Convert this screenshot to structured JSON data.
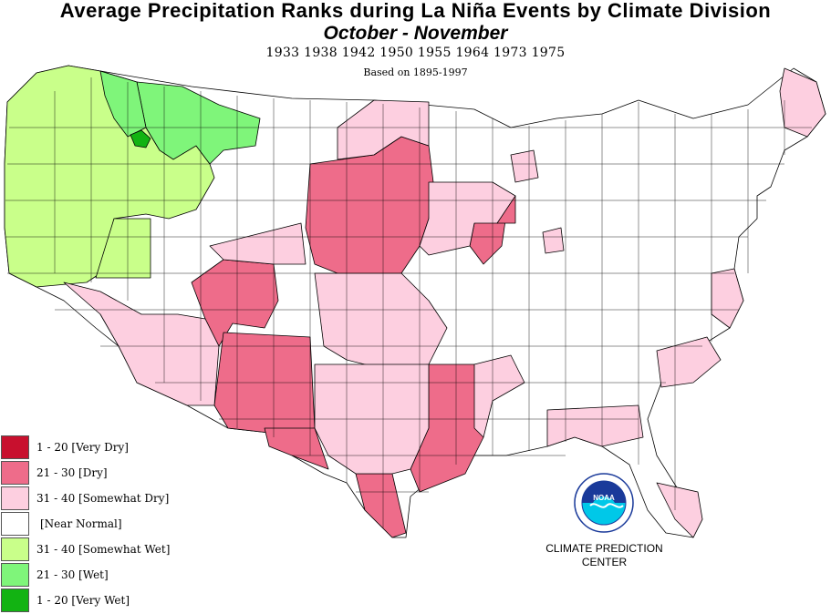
{
  "header": {
    "title": "Average Precipitation Ranks during La  Niña Events by Climate Division",
    "subtitle": "October - November",
    "years": "1933 1938 1942 1950 1955 1964 1973 1975",
    "based_on": "Based on 1895-1997"
  },
  "legend": {
    "items": [
      {
        "label": "1 - 20 [Very Dry]",
        "color": "#c8102e"
      },
      {
        "label": "21 - 30 [Dry]",
        "color": "#ee6c8a"
      },
      {
        "label": "31 - 40 [Somewhat Dry]",
        "color": "#fdcfe0"
      },
      {
        "label": "[Near Normal]",
        "color": "#ffffff"
      },
      {
        "label": "31 - 40 [Somewhat Wet]",
        "color": "#c9ff8a"
      },
      {
        "label": "21 - 30 [Wet]",
        "color": "#7ff57a"
      },
      {
        "label": "1 - 20 [Very Wet]",
        "color": "#12b312"
      }
    ]
  },
  "credit": {
    "line1": "CLIMATE PREDICTION",
    "line2": "CENTER"
  },
  "logo": {
    "text": "NOAA"
  },
  "colors": {
    "very_dry": "#c8102e",
    "dry": "#ee6c8a",
    "somewhat_dry": "#fdcfe0",
    "near_normal": "#ffffff",
    "somewhat_wet": "#c9ff8a",
    "wet": "#7ff57a",
    "very_wet": "#12b312"
  }
}
